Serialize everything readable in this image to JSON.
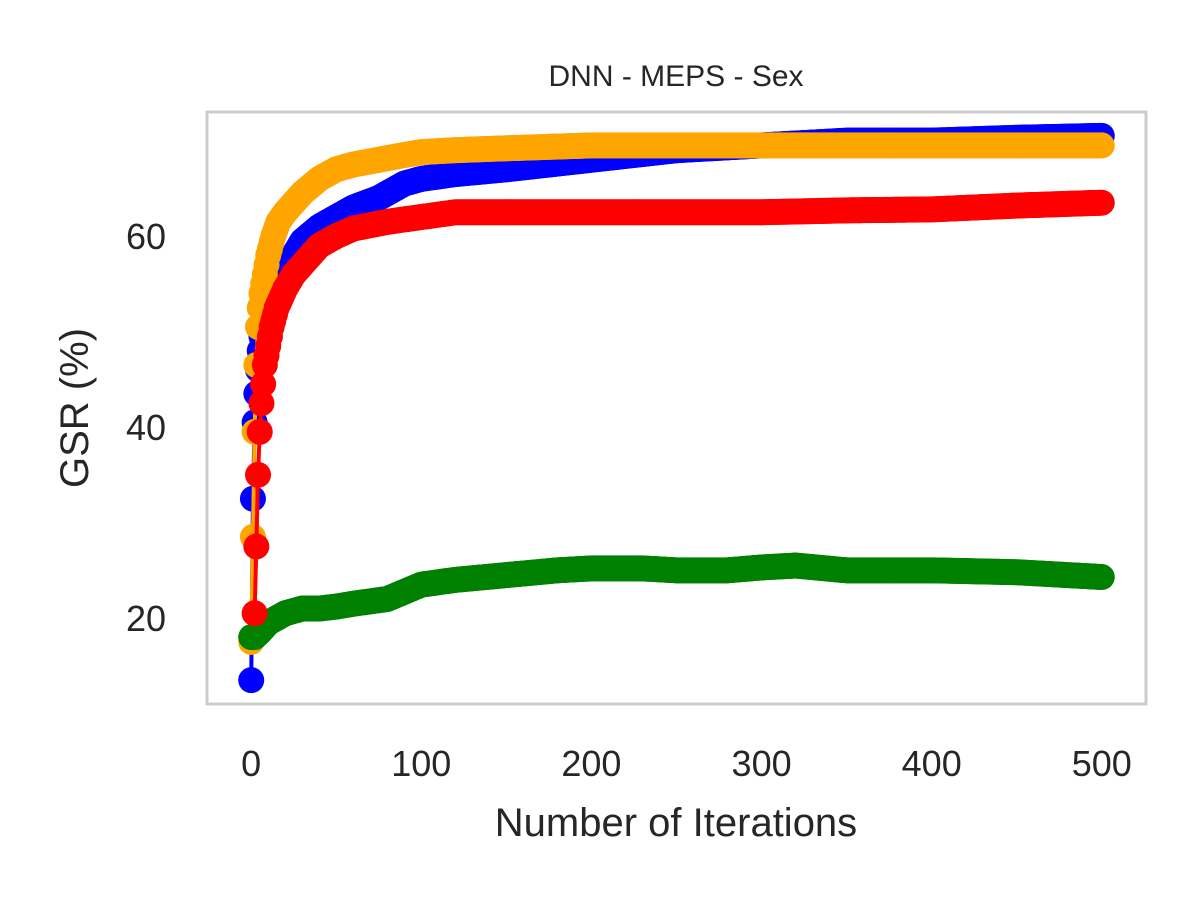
{
  "chart_data": {
    "type": "line",
    "title": "DNN - MEPS - Sex",
    "xlabel": "Number of Iterations",
    "ylabel": "GSR (%)",
    "xlim": [
      -26,
      526
    ],
    "ylim": [
      11,
      73
    ],
    "xticks": [
      0,
      100,
      200,
      300,
      400,
      500
    ],
    "yticks": [
      20,
      40,
      60
    ],
    "grid": false,
    "series": [
      {
        "name": "blue",
        "color": "#0000ff",
        "x": [
          0,
          1,
          2,
          3,
          4,
          5,
          6,
          8,
          10,
          13,
          16,
          20,
          25,
          30,
          40,
          50,
          60,
          75,
          90,
          100,
          120,
          150,
          200,
          250,
          300,
          350,
          400,
          450,
          500
        ],
        "y": [
          13.5,
          32.5,
          40.5,
          43.5,
          46,
          48,
          49.5,
          51,
          52.5,
          54,
          55.5,
          56.5,
          58,
          59.5,
          61,
          62,
          63,
          64,
          65.5,
          66,
          66.5,
          67,
          68,
          69,
          69.5,
          70,
          70,
          70.3,
          70.5
        ]
      },
      {
        "name": "orange",
        "color": "#ffa500",
        "x": [
          0,
          1,
          2,
          3,
          4,
          5,
          6,
          8,
          10,
          13,
          16,
          20,
          25,
          30,
          40,
          50,
          60,
          75,
          90,
          100,
          120,
          150,
          200,
          250,
          300,
          350,
          400,
          450,
          500
        ],
        "y": [
          17.5,
          28.5,
          39.5,
          46.5,
          50.5,
          52.5,
          54,
          56,
          58,
          60,
          61.5,
          62.5,
          63.5,
          64.5,
          66,
          67,
          67.5,
          68,
          68.5,
          68.8,
          69,
          69.2,
          69.5,
          69.5,
          69.5,
          69.5,
          69.5,
          69.5,
          69.5
        ]
      },
      {
        "name": "green",
        "color": "#008000",
        "x": [
          0,
          2,
          5,
          10,
          20,
          30,
          40,
          50,
          60,
          80,
          100,
          120,
          150,
          180,
          200,
          230,
          250,
          280,
          300,
          320,
          350,
          400,
          450,
          500
        ],
        "y": [
          18,
          18,
          18.5,
          19.5,
          20.5,
          21,
          21,
          21.2,
          21.5,
          22,
          23.5,
          24,
          24.5,
          25,
          25.2,
          25.2,
          25,
          25,
          25.3,
          25.5,
          25,
          25,
          24.8,
          24.3
        ]
      },
      {
        "name": "red",
        "color": "#ff0000",
        "x": [
          2,
          3,
          4,
          5,
          6,
          7,
          8,
          10,
          12,
          15,
          20,
          25,
          30,
          40,
          50,
          60,
          80,
          100,
          120,
          150,
          200,
          250,
          300,
          350,
          400,
          450,
          500
        ],
        "y": [
          20.5,
          27.5,
          35,
          39.5,
          42.5,
          44.5,
          46.5,
          48.5,
          50.5,
          52.5,
          54.5,
          56,
          57,
          59,
          60,
          60.8,
          61.5,
          62,
          62.5,
          62.5,
          62.5,
          62.5,
          62.5,
          62.7,
          62.8,
          63.2,
          63.5
        ]
      }
    ]
  }
}
